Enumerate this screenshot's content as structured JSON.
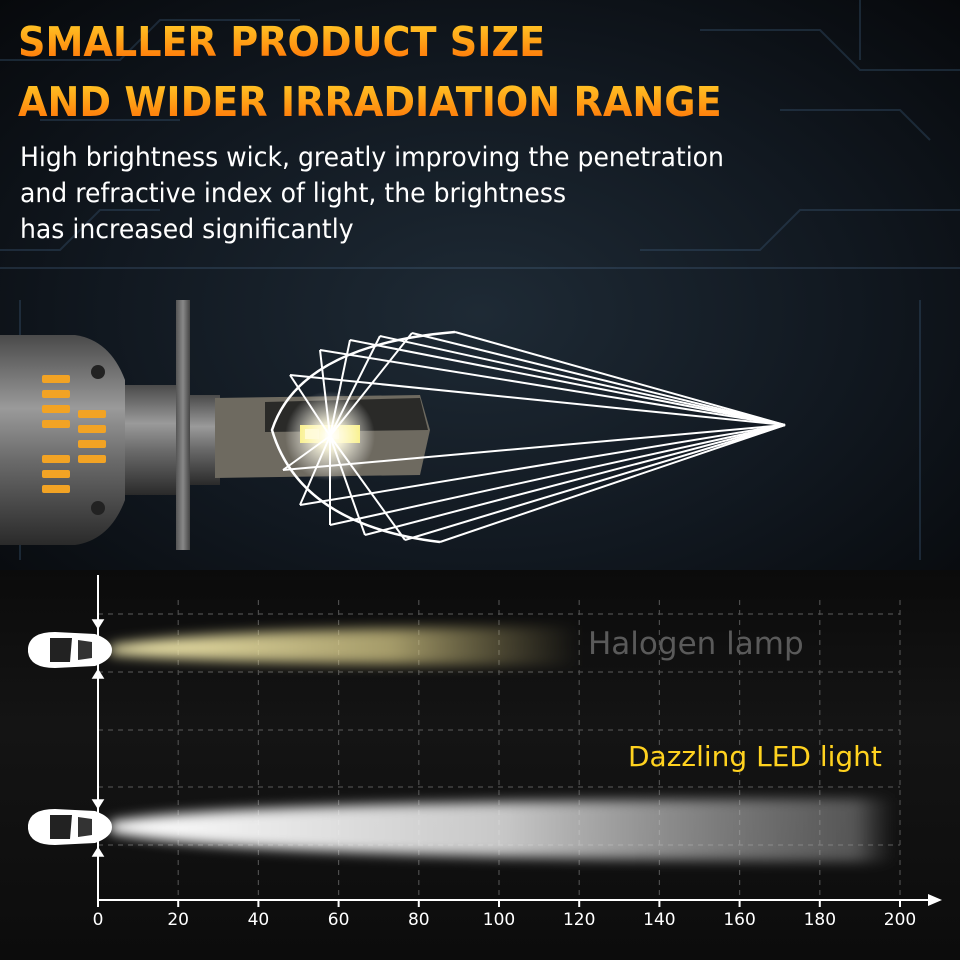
{
  "headline": {
    "line1": "SMALLER PRODUCT SIZE",
    "line2": "AND WIDER IRRADIATION RANGE"
  },
  "description": {
    "line1": "High brightness wick, greatly improving the penetration",
    "line2": "and refractive index of light, the brightness",
    "line3": "has increased significantly"
  },
  "comparison": {
    "halogen_label": "Halogen lamp",
    "led_label": "Dazzling LED light",
    "halogen_range": 120,
    "led_range": 200,
    "axis_ticks": [
      "0",
      "20",
      "40",
      "60",
      "80",
      "100",
      "120",
      "140",
      "160",
      "180",
      "200"
    ]
  },
  "colors": {
    "headline_gradient_top": "#ffcf2a",
    "headline_gradient_bottom": "#ff6a06",
    "led_label": "#ffd21f",
    "halogen_beam": "#e8dc9a",
    "led_beam": "#ffffff",
    "heat_sink_accent": "#f2a324"
  },
  "icons": [
    "car-icon",
    "led-bulb-icon"
  ]
}
